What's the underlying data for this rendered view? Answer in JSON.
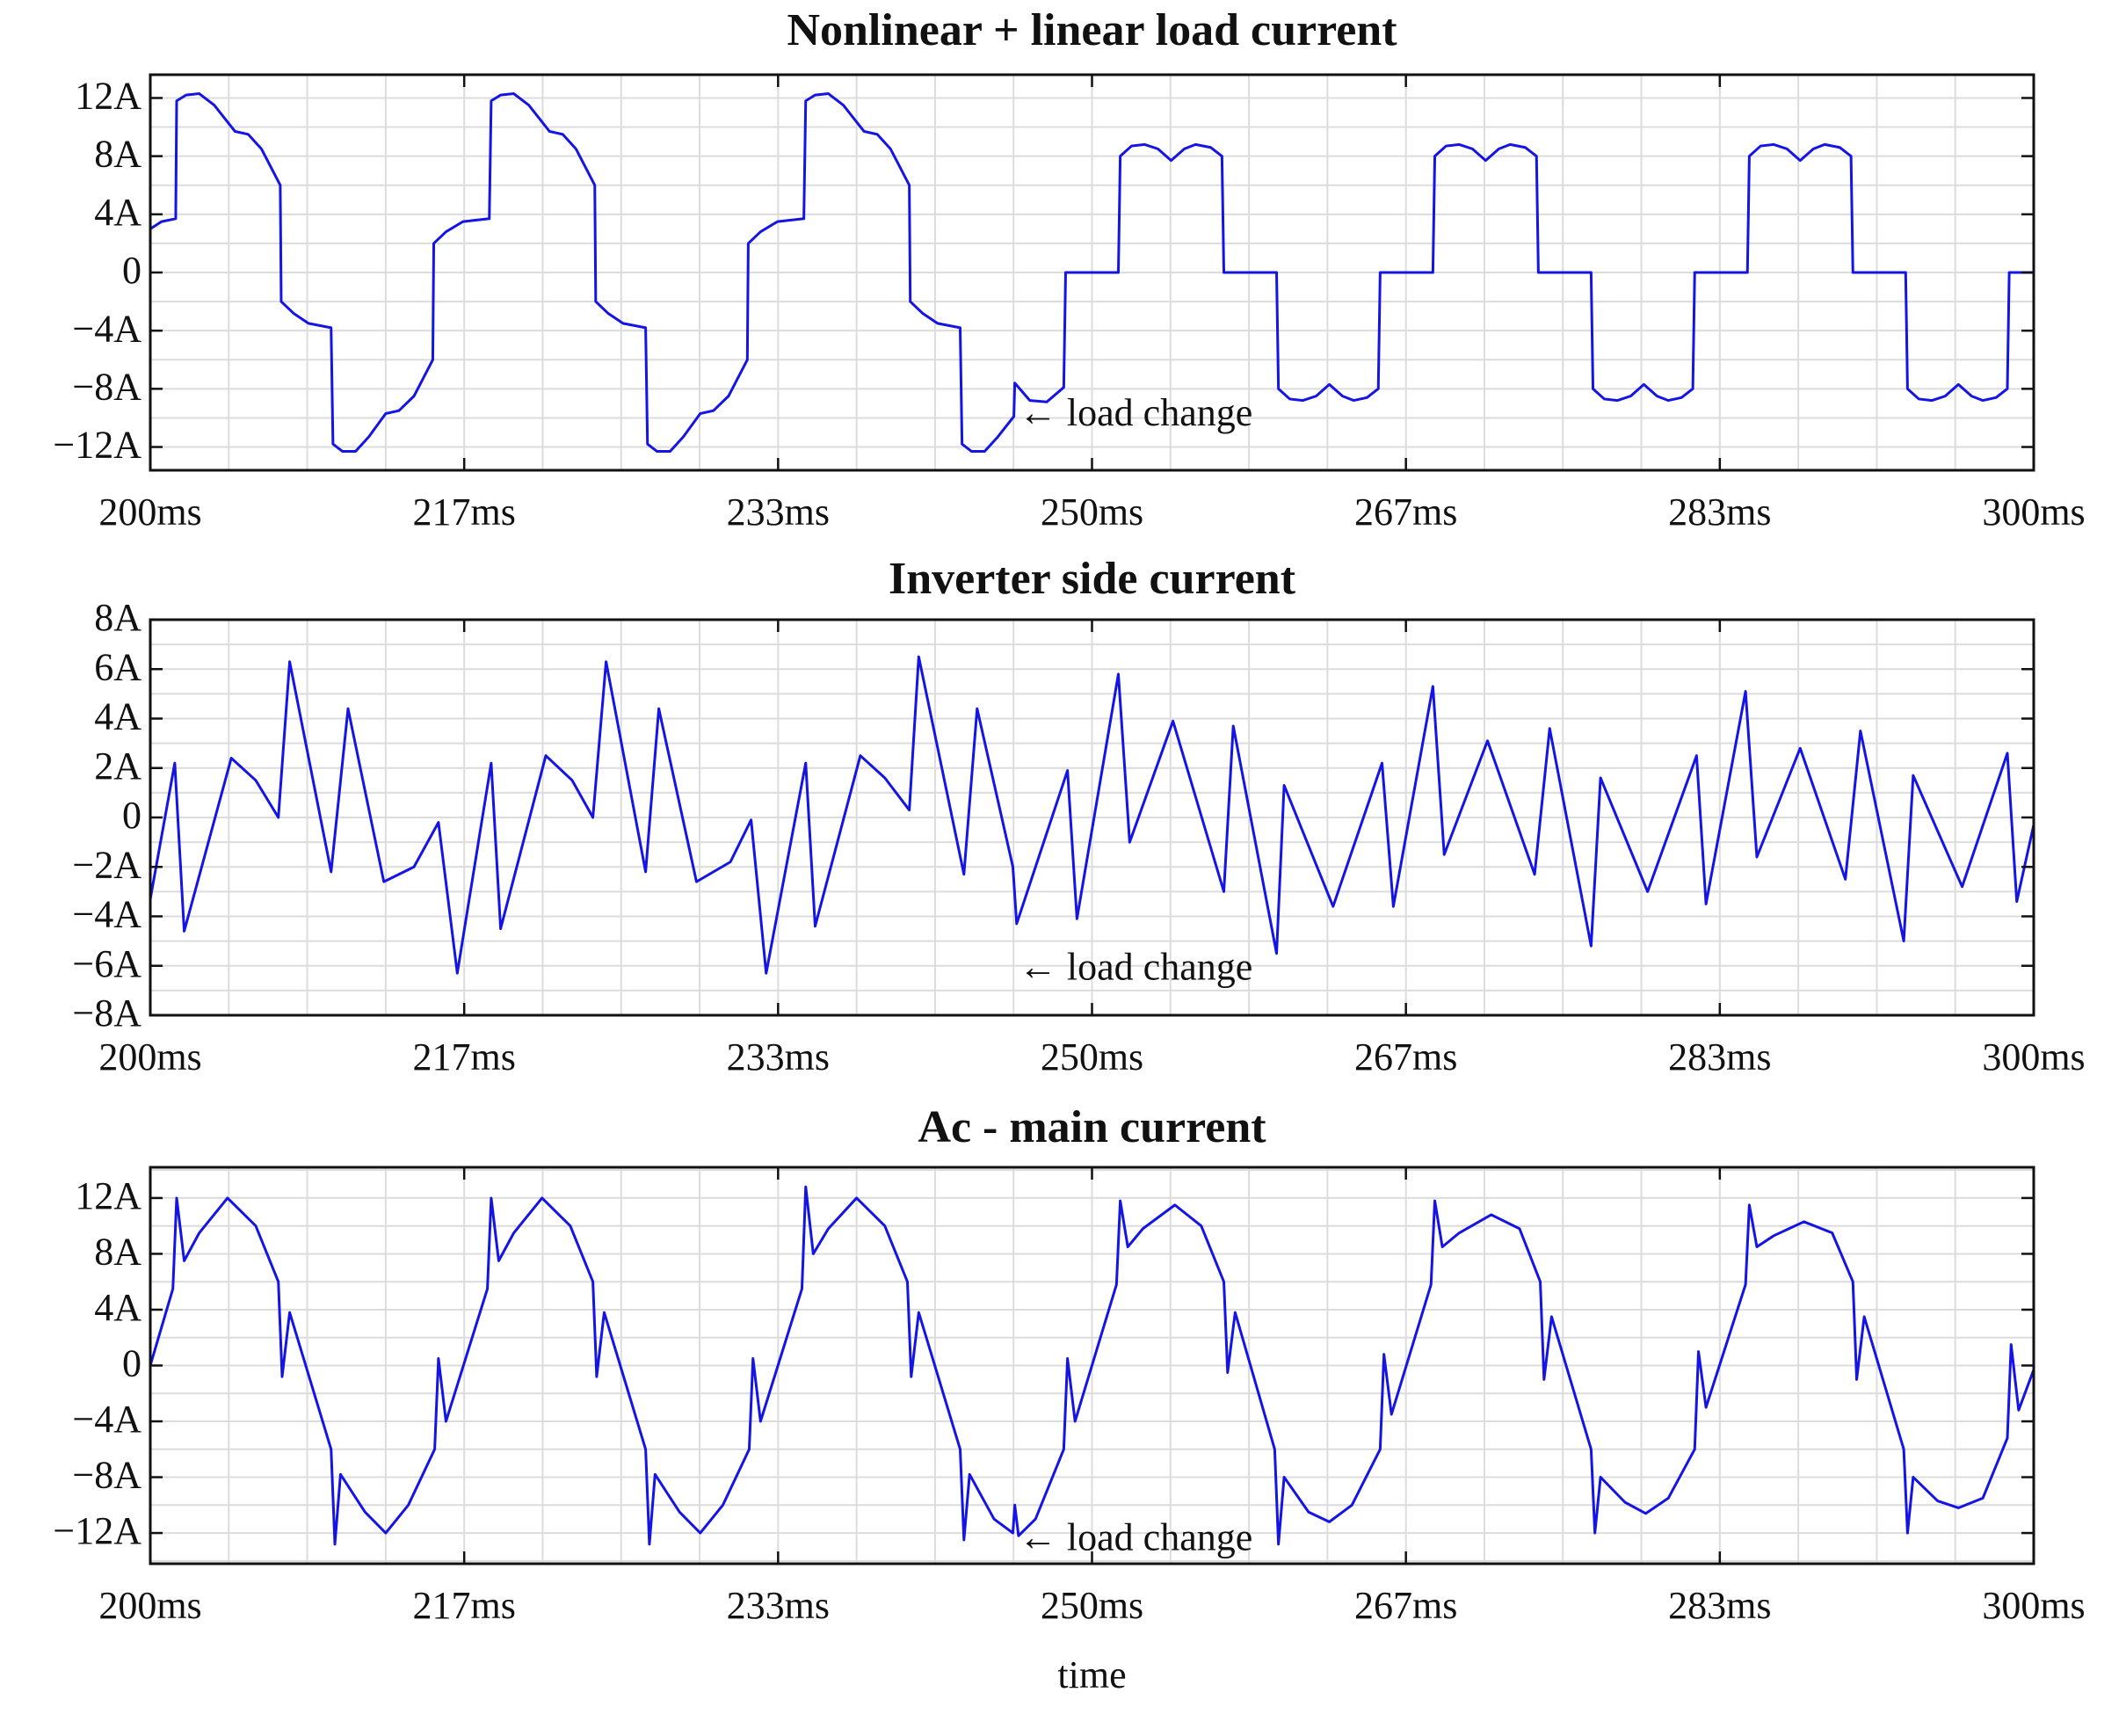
{
  "chart_data": [
    {
      "type": "line",
      "title": "Nonlinear + linear load current",
      "x": [
        200,
        200.6,
        201.35,
        201.4,
        201.9,
        202.6,
        203.4,
        204.5,
        205.2,
        205.9,
        206.9,
        206.95,
        207.6,
        208.4,
        209.6,
        209.7,
        210.2,
        210.9,
        211.6,
        212.5,
        213.2,
        214,
        215,
        215.05,
        215.7,
        216.6,
        218,
        218.1,
        218.6,
        219.3,
        220.1,
        221.2,
        221.9,
        222.6,
        223.6,
        223.65,
        224.3,
        225.1,
        226.3,
        226.4,
        226.9,
        227.6,
        228.3,
        229.2,
        229.9,
        230.7,
        231.7,
        231.75,
        232.4,
        233.3,
        234.7,
        234.8,
        235.3,
        236,
        236.8,
        237.9,
        238.6,
        239.3,
        240.3,
        240.35,
        241,
        241.8,
        243,
        243.1,
        243.6,
        244.3,
        245,
        245.85,
        245.9,
        246.7,
        247.6,
        248.5,
        248.6,
        251.4,
        251.5,
        252.1,
        252.8,
        253.5,
        254.2,
        254.9,
        255.5,
        256.3,
        256.9,
        257,
        259.8,
        259.9,
        260.5,
        261.2,
        261.9,
        262.6,
        263.3,
        263.9,
        264.6,
        265.2,
        265.3,
        268.1,
        268.2,
        268.8,
        269.5,
        270.2,
        270.9,
        271.6,
        272.2,
        273,
        273.6,
        273.7,
        276.5,
        276.6,
        277.2,
        277.9,
        278.6,
        279.3,
        280,
        280.6,
        281.3,
        281.9,
        282,
        284.8,
        284.9,
        285.5,
        286.2,
        286.9,
        287.6,
        288.3,
        288.9,
        289.7,
        290.3,
        290.4,
        293.2,
        293.3,
        293.9,
        294.6,
        295.3,
        296,
        296.7,
        297.3,
        298,
        298.6,
        298.7,
        300
      ],
      "series": [
        {
          "color": "#1414e6",
          "values": [
            3,
            3.5,
            3.7,
            11.8,
            12.2,
            12.3,
            11.5,
            9.7,
            9.5,
            8.5,
            6,
            -2,
            -2.8,
            -3.5,
            -3.8,
            -11.8,
            -12.3,
            -12.3,
            -11.3,
            -9.7,
            -9.5,
            -8.5,
            -6,
            2,
            2.8,
            3.5,
            3.7,
            11.8,
            12.2,
            12.3,
            11.5,
            9.7,
            9.5,
            8.5,
            6,
            -2,
            -2.8,
            -3.5,
            -3.8,
            -11.8,
            -12.3,
            -12.3,
            -11.3,
            -9.7,
            -9.5,
            -8.5,
            -6,
            2,
            2.8,
            3.5,
            3.7,
            11.8,
            12.2,
            12.3,
            11.5,
            9.7,
            9.5,
            8.5,
            6,
            -2,
            -2.8,
            -3.5,
            -3.8,
            -11.8,
            -12.3,
            -12.3,
            -11.3,
            -9.9,
            -7.6,
            -8.8,
            -8.9,
            -7.9,
            0,
            0,
            8,
            8.7,
            8.8,
            8.5,
            7.7,
            8.5,
            8.8,
            8.6,
            8,
            0,
            0,
            -8,
            -8.7,
            -8.8,
            -8.5,
            -7.7,
            -8.5,
            -8.8,
            -8.6,
            -8,
            0,
            0,
            8,
            8.7,
            8.8,
            8.5,
            7.7,
            8.5,
            8.8,
            8.6,
            8,
            0,
            0,
            -8,
            -8.7,
            -8.8,
            -8.5,
            -7.7,
            -8.5,
            -8.8,
            -8.6,
            -8,
            0,
            0,
            8,
            8.7,
            8.8,
            8.5,
            7.7,
            8.5,
            8.8,
            8.6,
            8,
            0,
            0,
            -8,
            -8.7,
            -8.8,
            -8.5,
            -7.7,
            -8.5,
            -8.8,
            -8.6,
            -8,
            0,
            0
          ]
        }
      ],
      "xlim": [
        200,
        300
      ],
      "xticks": [
        {
          "value": 200,
          "label": "200ms"
        },
        {
          "value": 216.667,
          "label": "217ms"
        },
        {
          "value": 233.333,
          "label": "233ms"
        },
        {
          "value": 250,
          "label": "250ms"
        },
        {
          "value": 266.667,
          "label": "267ms"
        },
        {
          "value": 283.333,
          "label": "283ms"
        },
        {
          "value": 300,
          "label": "300ms"
        }
      ],
      "ylim": [
        -13.6,
        13.6
      ],
      "yticks": [
        {
          "value": -12,
          "label": "−12A"
        },
        {
          "value": -8,
          "label": "−8A"
        },
        {
          "value": -4,
          "label": "−4A"
        },
        0,
        {
          "value": 4,
          "label": "4A"
        },
        {
          "value": 8,
          "label": "8A"
        },
        {
          "value": 12,
          "label": "12A"
        }
      ],
      "grid": true,
      "grid_x": [
        200,
        204.167,
        208.333,
        212.5,
        216.667,
        220.833,
        225,
        229.167,
        233.333,
        237.5,
        241.667,
        245.833,
        250,
        254.167,
        258.333,
        262.5,
        266.667,
        270.833,
        275,
        279.167,
        283.333,
        287.5,
        291.667,
        295.833,
        300
      ],
      "grid_y": [
        -12,
        -10,
        -8,
        -6,
        -4,
        -2,
        0,
        2,
        4,
        6,
        8,
        10,
        12
      ],
      "annotations": [
        {
          "text": "← load change",
          "x": 246.1,
          "y": -9.9
        }
      ]
    },
    {
      "type": "line",
      "title": "Inverter side current",
      "x": [
        200,
        201.3,
        201.8,
        204.3,
        205.6,
        206.8,
        207.4,
        209.6,
        210.5,
        212.4,
        214,
        215.3,
        216.3,
        218.1,
        218.6,
        221,
        222.4,
        223.5,
        224.2,
        226.3,
        227,
        229,
        230.8,
        231.9,
        232.7,
        234.8,
        235.3,
        237.7,
        239,
        240.3,
        240.8,
        243.2,
        243.9,
        245.8,
        246,
        248.7,
        249.2,
        251.4,
        252,
        254.3,
        257,
        257.5,
        259.8,
        260.2,
        262.8,
        265.4,
        266,
        268.1,
        268.7,
        271,
        273.5,
        274.3,
        276.5,
        277,
        279.5,
        282.1,
        282.6,
        284.7,
        285.3,
        287.6,
        290,
        290.8,
        293.1,
        293.6,
        296.2,
        298.6,
        299.1,
        300
      ],
      "series": [
        {
          "color": "#1414e6",
          "values": [
            -3.3,
            2.2,
            -4.6,
            2.4,
            1.5,
            0,
            6.3,
            -2.2,
            4.4,
            -2.6,
            -2,
            -0.2,
            -6.3,
            2.2,
            -4.5,
            2.5,
            1.5,
            0,
            6.3,
            -2.2,
            4.4,
            -2.6,
            -1.8,
            -0.1,
            -6.3,
            2.2,
            -4.4,
            2.5,
            1.6,
            0.3,
            6.5,
            -2.3,
            4.4,
            -2,
            -4.3,
            1.9,
            -4.1,
            5.8,
            -1,
            3.9,
            -3,
            3.7,
            -5.5,
            1.3,
            -3.6,
            2.2,
            -3.6,
            5.3,
            -1.5,
            3.1,
            -2.3,
            3.6,
            -5.2,
            1.6,
            -3,
            2.5,
            -3.5,
            5.1,
            -1.6,
            2.8,
            -2.5,
            3.5,
            -5,
            1.7,
            -2.8,
            2.6,
            -3.4,
            -0.3
          ]
        }
      ],
      "xlim": [
        200,
        300
      ],
      "xticks": [
        {
          "value": 200,
          "label": "200ms"
        },
        {
          "value": 216.667,
          "label": "217ms"
        },
        {
          "value": 233.333,
          "label": "233ms"
        },
        {
          "value": 250,
          "label": "250ms"
        },
        {
          "value": 266.667,
          "label": "267ms"
        },
        {
          "value": 283.333,
          "label": "283ms"
        },
        {
          "value": 300,
          "label": "300ms"
        }
      ],
      "ylim": [
        -8,
        8
      ],
      "yticks": [
        {
          "value": -8,
          "label": "−8A"
        },
        {
          "value": -6,
          "label": "−6A"
        },
        {
          "value": -4,
          "label": "−4A"
        },
        {
          "value": -2,
          "label": "−2A"
        },
        0,
        {
          "value": 2,
          "label": "2A"
        },
        {
          "value": 4,
          "label": "4A"
        },
        {
          "value": 6,
          "label": "6A"
        },
        {
          "value": 8,
          "label": "8A"
        }
      ],
      "grid": true,
      "grid_x": [
        200,
        204.167,
        208.333,
        212.5,
        216.667,
        220.833,
        225,
        229.167,
        233.333,
        237.5,
        241.667,
        245.833,
        250,
        254.167,
        258.333,
        262.5,
        266.667,
        270.833,
        275,
        279.167,
        283.333,
        287.5,
        291.667,
        295.833,
        300
      ],
      "grid_y": [
        -7,
        -6,
        -5,
        -4,
        -3,
        -2,
        -1,
        0,
        1,
        2,
        3,
        4,
        5,
        6,
        7
      ],
      "annotations": [
        {
          "text": "← load change",
          "x": 246.1,
          "y": -6.2
        }
      ]
    },
    {
      "type": "line",
      "title": "Ac - main current",
      "xlabel": "time",
      "x": [
        200,
        201.2,
        201.4,
        201.8,
        202.6,
        204.1,
        205.6,
        206.8,
        207,
        207.4,
        209.6,
        209.8,
        210.1,
        211.4,
        212.5,
        213.7,
        215.1,
        215.3,
        215.7,
        217.9,
        218.1,
        218.5,
        219.3,
        220.8,
        222.3,
        223.5,
        223.7,
        224.1,
        226.3,
        226.5,
        226.8,
        228.1,
        229.2,
        230.4,
        231.8,
        232,
        232.4,
        234.6,
        234.8,
        235.2,
        236,
        237.5,
        239,
        240.2,
        240.4,
        240.8,
        243,
        243.2,
        243.5,
        244.8,
        245.8,
        245.9,
        246.1,
        247,
        248.5,
        248.7,
        249.1,
        251.3,
        251.5,
        251.9,
        252.7,
        254.4,
        255.8,
        257,
        257.2,
        257.6,
        259.7,
        259.9,
        260.2,
        261.5,
        262.6,
        263.8,
        265.3,
        265.5,
        265.9,
        268,
        268.2,
        268.6,
        269.5,
        271.2,
        272.7,
        273.8,
        274,
        274.4,
        276.5,
        276.7,
        277,
        278.3,
        279.4,
        280.6,
        282,
        282.2,
        282.6,
        284.7,
        284.9,
        285.3,
        286.2,
        287.8,
        289.3,
        290.4,
        290.6,
        291,
        293.1,
        293.3,
        293.6,
        294.9,
        296,
        297.3,
        298.6,
        298.8,
        299.2,
        300
      ],
      "series": [
        {
          "color": "#1414e6",
          "values": [
            0,
            5.5,
            12,
            7.5,
            9.5,
            12,
            10,
            6,
            -0.8,
            3.8,
            -6,
            -12.8,
            -7.8,
            -10.5,
            -12,
            -10,
            -6,
            0.5,
            -4,
            5.5,
            12,
            7.5,
            9.5,
            12,
            10,
            6,
            -0.8,
            3.8,
            -6,
            -12.8,
            -7.8,
            -10.5,
            -12,
            -10,
            -6,
            0.5,
            -4,
            5.5,
            12.8,
            8,
            9.8,
            12,
            10,
            6,
            -0.8,
            3.8,
            -6,
            -12.5,
            -7.8,
            -11,
            -12,
            -10,
            -12.2,
            -11,
            -6,
            0.5,
            -4,
            5.8,
            11.8,
            8.5,
            9.8,
            11.5,
            10,
            6,
            -0.5,
            3.8,
            -6,
            -12.8,
            -8,
            -10.5,
            -11.2,
            -10,
            -6,
            0.8,
            -3.5,
            5.8,
            11.8,
            8.5,
            9.5,
            10.8,
            9.8,
            6,
            -1,
            3.5,
            -6,
            -12,
            -8,
            -9.8,
            -10.6,
            -9.5,
            -6,
            1,
            -3,
            5.8,
            11.5,
            8.5,
            9.3,
            10.3,
            9.5,
            6,
            -1,
            3.5,
            -6,
            -12,
            -8,
            -9.7,
            -10.2,
            -9.5,
            -5.2,
            1.5,
            -3.2,
            -0.3
          ]
        }
      ],
      "xlim": [
        200,
        300
      ],
      "xticks": [
        {
          "value": 200,
          "label": "200ms"
        },
        {
          "value": 216.667,
          "label": "217ms"
        },
        {
          "value": 233.333,
          "label": "233ms"
        },
        {
          "value": 250,
          "label": "250ms"
        },
        {
          "value": 266.667,
          "label": "267ms"
        },
        {
          "value": 283.333,
          "label": "283ms"
        },
        {
          "value": 300,
          "label": "300ms"
        }
      ],
      "ylim": [
        -14.2,
        14.2
      ],
      "yticks": [
        {
          "value": -12,
          "label": "−12A"
        },
        {
          "value": -8,
          "label": "−8A"
        },
        {
          "value": -4,
          "label": "−4A"
        },
        0,
        {
          "value": 4,
          "label": "4A"
        },
        {
          "value": 8,
          "label": "8A"
        },
        {
          "value": 12,
          "label": "12A"
        }
      ],
      "grid": true,
      "grid_x": [
        200,
        204.167,
        208.333,
        212.5,
        216.667,
        220.833,
        225,
        229.167,
        233.333,
        237.5,
        241.667,
        245.833,
        250,
        254.167,
        258.333,
        262.5,
        266.667,
        270.833,
        275,
        279.167,
        283.333,
        287.5,
        291.667,
        295.833,
        300
      ],
      "grid_y": [
        -14,
        -12,
        -10,
        -8,
        -6,
        -4,
        -2,
        0,
        2,
        4,
        6,
        8,
        10,
        12,
        14
      ],
      "annotations": [
        {
          "text": "← load change",
          "x": 246.1,
          "y": -12.6
        }
      ]
    }
  ]
}
